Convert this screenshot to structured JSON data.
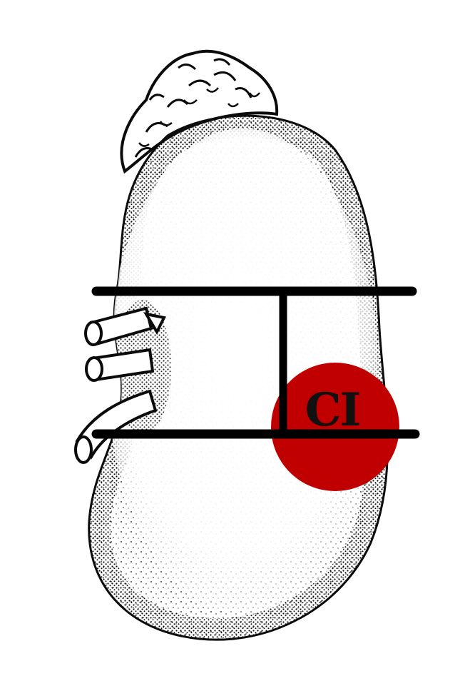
{
  "diagram": {
    "subject": "kidney",
    "tumor": {
      "label": "CI",
      "fill_color": "#c00000",
      "label_color": "#111111"
    },
    "colors": {
      "ink": "#0b0b0b",
      "paper": "#ffffff",
      "guide_lines": "#000000"
    }
  }
}
